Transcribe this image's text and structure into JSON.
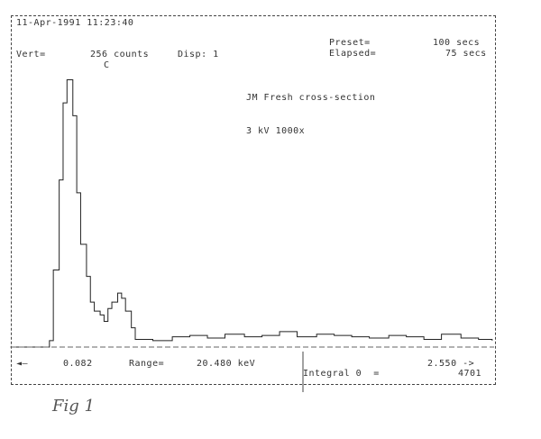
{
  "header": {
    "datetime": "11-Apr-1991 11:23:40",
    "vert_label": "Vert=",
    "vert_value": "256 counts",
    "disp": "Disp: 1",
    "preset_label": "Preset=",
    "preset_value": "100 secs",
    "elapsed_label": "Elapsed=",
    "elapsed_value": "75 secs"
  },
  "annotations": {
    "sample": "JM Fresh cross-section",
    "conditions": "3 kV 1000x",
    "peak_label": "C"
  },
  "footer": {
    "left_arrow": "◄—",
    "start_energy": "0.082",
    "range_label": "Range=",
    "range_value": "20.480 keV",
    "cursor_value": "2.550 ->",
    "integral_label": "Integral 0  =",
    "integral_value": "4701"
  },
  "handwritten_caption": "Fig 1",
  "chart_data": {
    "type": "line",
    "style": "step histogram",
    "title": "",
    "xlabel": "",
    "ylabel": "",
    "xlim": [
      0.082,
      2.56
    ],
    "ylim": [
      0,
      256
    ],
    "grid": false,
    "x": [
      0.08,
      0.26,
      0.28,
      0.3,
      0.33,
      0.35,
      0.37,
      0.4,
      0.42,
      0.44,
      0.47,
      0.49,
      0.51,
      0.54,
      0.56,
      0.58,
      0.6,
      0.63,
      0.65,
      0.67,
      0.7,
      0.72,
      0.81,
      0.91,
      1.0,
      1.09,
      1.18,
      1.28,
      1.37,
      1.46,
      1.55,
      1.65,
      1.74,
      1.83,
      1.92,
      2.02,
      2.11,
      2.2,
      2.29,
      2.39,
      2.48,
      2.55
    ],
    "y": [
      0,
      0,
      5,
      60,
      130,
      190,
      208,
      180,
      120,
      80,
      55,
      35,
      28,
      25,
      20,
      30,
      35,
      42,
      38,
      28,
      15,
      6,
      5,
      8,
      9,
      7,
      10,
      8,
      9,
      12,
      8,
      10,
      9,
      8,
      7,
      9,
      8,
      6,
      10,
      7,
      6,
      5
    ],
    "colors": {
      "trace": "#222222",
      "frame": "#444444"
    }
  }
}
